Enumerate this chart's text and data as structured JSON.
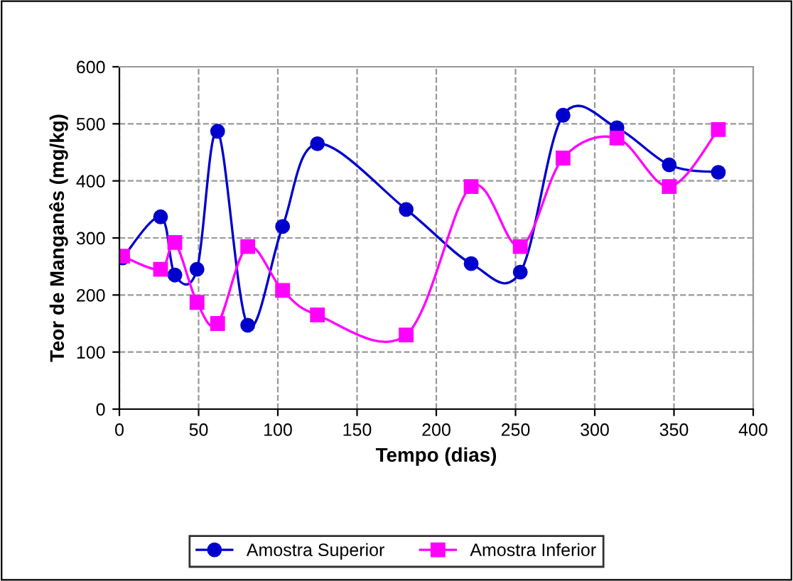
{
  "chart_data": {
    "type": "line",
    "xlabel": "Tempo (dias)",
    "ylabel": "Teor de Manganês (mg/kg)",
    "xlim": [
      0,
      400
    ],
    "xticks": [
      0,
      50,
      100,
      150,
      200,
      250,
      300,
      350,
      400
    ],
    "ylim": [
      0,
      600
    ],
    "yticks": [
      0,
      100,
      200,
      300,
      400,
      500,
      600
    ],
    "grid": true,
    "legend": "bottom",
    "line_style": "solid",
    "series": [
      {
        "name": "Amostra Superior",
        "color": "#0000cc",
        "marker": "circle",
        "x": [
          2,
          26,
          35,
          49,
          62,
          81,
          103,
          125,
          181,
          222,
          253,
          280,
          314,
          347,
          378
        ],
        "values": [
          265,
          337,
          235,
          245,
          487,
          147,
          320,
          465,
          350,
          255,
          240,
          515,
          493,
          428,
          415
        ]
      },
      {
        "name": "Amostra Inferior",
        "color": "#ff00ff",
        "marker": "square",
        "x": [
          2,
          26,
          35,
          49,
          62,
          81,
          103,
          125,
          181,
          222,
          253,
          280,
          314,
          347,
          378
        ],
        "values": [
          268,
          245,
          292,
          187,
          150,
          285,
          208,
          165,
          130,
          390,
          285,
          440,
          475,
          390,
          490
        ]
      }
    ]
  }
}
